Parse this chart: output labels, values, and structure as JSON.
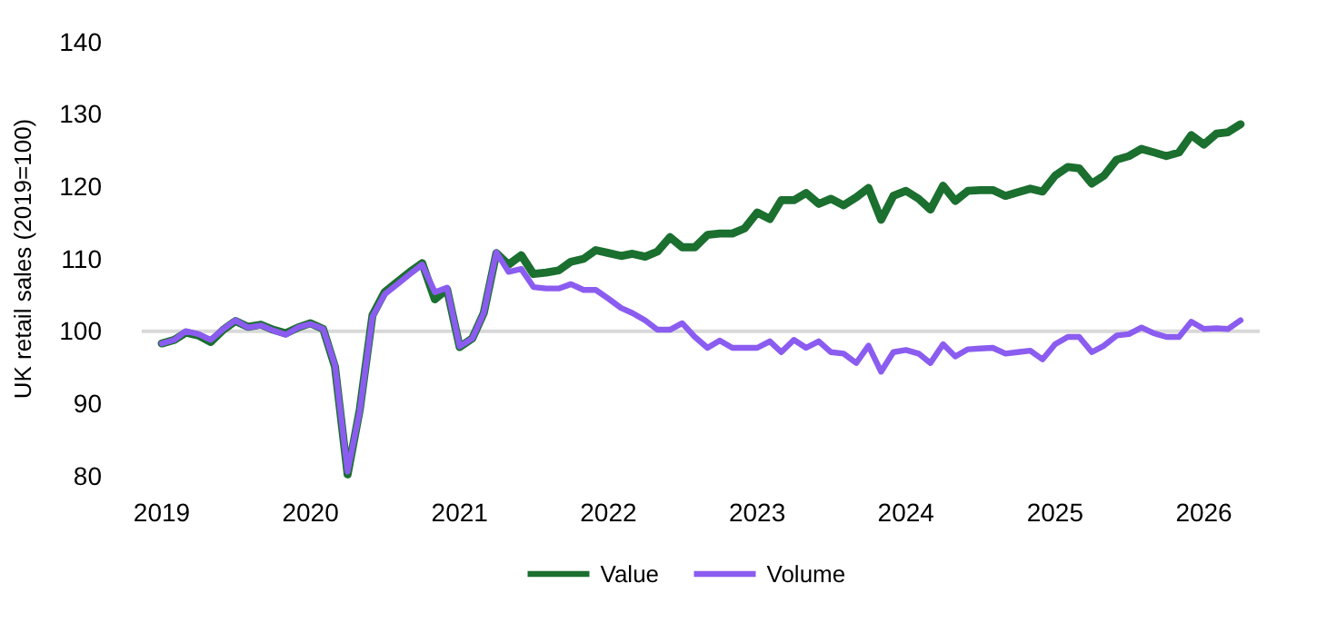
{
  "chart_data": {
    "type": "line",
    "ylabel": "UK retail sales (2019=100)",
    "x": [
      "2019-01",
      "2019-02",
      "2019-03",
      "2019-04",
      "2019-05",
      "2019-06",
      "2019-07",
      "2019-08",
      "2019-09",
      "2019-10",
      "2019-11",
      "2019-12",
      "2020-01",
      "2020-02",
      "2020-03",
      "2020-04",
      "2020-05",
      "2020-06",
      "2020-07",
      "2020-08",
      "2020-09",
      "2020-10",
      "2020-11",
      "2020-12",
      "2021-01",
      "2021-02",
      "2021-03",
      "2021-04",
      "2021-05",
      "2021-06",
      "2021-07",
      "2021-08",
      "2021-09",
      "2021-10",
      "2021-11",
      "2021-12",
      "2022-01",
      "2022-02",
      "2022-03",
      "2022-04",
      "2022-05",
      "2022-06",
      "2022-07",
      "2022-08",
      "2022-09",
      "2022-10",
      "2022-11",
      "2022-12",
      "2023-01",
      "2023-02",
      "2023-03",
      "2023-04",
      "2023-05",
      "2023-06",
      "2023-07",
      "2023-08",
      "2023-09",
      "2023-10",
      "2023-11",
      "2023-12",
      "2024-01",
      "2024-02",
      "2024-03",
      "2024-04",
      "2024-05",
      "2024-06",
      "2024-07",
      "2024-08",
      "2024-09",
      "2024-10",
      "2024-11",
      "2024-12",
      "2025-01",
      "2025-02",
      "2025-03",
      "2025-04",
      "2025-05",
      "2025-06",
      "2025-07",
      "2025-08",
      "2025-09",
      "2025-10",
      "2025-11",
      "2025-12",
      "2026-01",
      "2026-02",
      "2026-03",
      "2026-04"
    ],
    "xlim": [
      "2018-11-13",
      "2026-05-18"
    ],
    "xticks": [
      {
        "value": "2019-01",
        "label": "2019"
      },
      {
        "value": "2020-01",
        "label": "2020"
      },
      {
        "value": "2021-01",
        "label": "2021"
      },
      {
        "value": "2022-01",
        "label": "2022"
      },
      {
        "value": "2023-01",
        "label": "2023"
      },
      {
        "value": "2024-01",
        "label": "2024"
      },
      {
        "value": "2025-01",
        "label": "2025"
      },
      {
        "value": "2026-01",
        "label": "2026"
      }
    ],
    "ylim": [
      80,
      140
    ],
    "yticks": [
      80,
      90,
      100,
      110,
      120,
      130,
      140
    ],
    "series": [
      {
        "name": "Value",
        "color": "#1b6f2f",
        "values": [
          98.3,
          98.8,
          99.8,
          99.4,
          98.5,
          100.2,
          101.4,
          100.6,
          100.9,
          100.2,
          99.7,
          100.5,
          101.1,
          100.3,
          95.1,
          80.2,
          89.2,
          102.2,
          105.4,
          106.8,
          108.2,
          109.4,
          104.4,
          105.8,
          97.8,
          99,
          102.5,
          110.8,
          109.2,
          110.5,
          107.9,
          108.1,
          108.4,
          109.6,
          110,
          111.2,
          110.8,
          110.4,
          110.7,
          110.3,
          111,
          113,
          111.6,
          111.6,
          113.3,
          113.5,
          113.5,
          114.2,
          116.4,
          115.5,
          118.1,
          118.1,
          119.1,
          117.6,
          118.3,
          117.4,
          118.5,
          119.8,
          115.4,
          118.7,
          119.4,
          118.3,
          116.8,
          120.1,
          118,
          119.4,
          119.5,
          119.5,
          118.7,
          119.2,
          119.7,
          119.3,
          121.5,
          122.7,
          122.5,
          120.4,
          121.5,
          123.7,
          124.2,
          125.2,
          124.7,
          124.2,
          124.7,
          127.1,
          125.8,
          127.3,
          127.5,
          128.6
        ]
      },
      {
        "name": "Volume",
        "color": "#8b5cf0",
        "values": [
          98.3,
          98.8,
          100,
          99.6,
          98.8,
          100.3,
          101.5,
          100.5,
          100.8,
          100.1,
          99.5,
          100.5,
          101,
          100.3,
          95.3,
          80.6,
          89,
          102,
          105.1,
          106.5,
          107.9,
          109.2,
          105.4,
          106,
          97.9,
          99,
          102.5,
          110.9,
          108.2,
          108.6,
          106.1,
          105.9,
          105.9,
          106.5,
          105.7,
          105.7,
          104.5,
          103.2,
          102.5,
          101.5,
          100.2,
          100.2,
          101.1,
          99.2,
          97.7,
          98.7,
          97.7,
          97.7,
          97.7,
          98.6,
          97.1,
          98.8,
          97.7,
          98.6,
          97.1,
          96.9,
          95.6,
          98,
          94.4,
          97.1,
          97.4,
          96.9,
          95.6,
          98.2,
          96.5,
          97.5,
          97.6,
          97.7,
          96.9,
          97.1,
          97.3,
          96.1,
          98.2,
          99.2,
          99.2,
          97.1,
          98,
          99.4,
          99.6,
          100.5,
          99.7,
          99.2,
          99.2,
          101.3,
          100.3,
          100.4,
          100.3,
          101.5
        ]
      }
    ],
    "ref_lines": [
      {
        "axis": "y",
        "value": 100,
        "color": "#d9d9d9"
      }
    ],
    "legend": "bottom",
    "grid": false,
    "marker": "none",
    "line_style": "solid"
  }
}
